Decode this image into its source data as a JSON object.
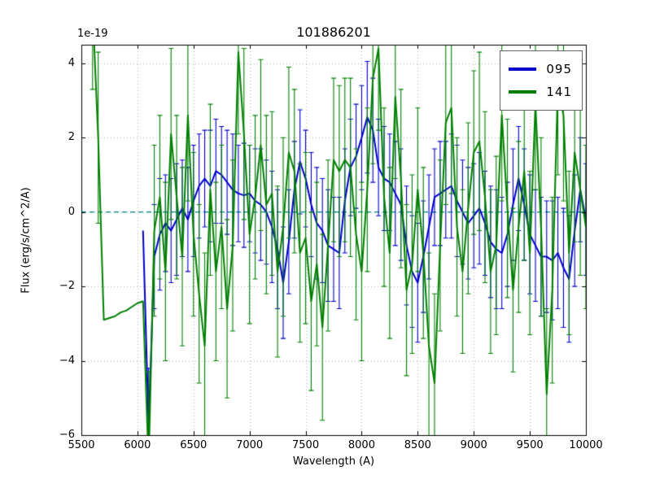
{
  "figure": {
    "title": "101886201",
    "offset_text": "1e-19",
    "xlabel": "Wavelength (A)",
    "ylabel": "Flux (erg/s/cm^2/A)",
    "colors": {
      "background": "#ffffff",
      "frame": "#000000",
      "grid": "#b0b0b0",
      "zero_line": "#008b8b",
      "series_095": "#0000cd",
      "series_141": "#008000"
    }
  },
  "chart_data": {
    "type": "line",
    "title": "101886201",
    "xlabel": "Wavelength (A)",
    "ylabel": "Flux (erg/s/cm^2/A)",
    "y_scale_factor": "1e-19",
    "xlim": [
      5500,
      10000
    ],
    "ylim": [
      -6,
      4.5
    ],
    "xticks": [
      5500,
      6000,
      6500,
      7000,
      7500,
      8000,
      8500,
      9000,
      9500,
      10000
    ],
    "xtick_labels": [
      "5500",
      "6000",
      "6500",
      "7000",
      "7500",
      "8000",
      "8500",
      "9000",
      "9500",
      "10000"
    ],
    "yticks": [
      -6,
      -4,
      -2,
      0,
      2,
      4
    ],
    "ytick_labels": [
      "−6",
      "−4",
      "−2",
      "0",
      "2",
      "4"
    ],
    "grid": true,
    "grid_style": "dotted",
    "legend_position": "upper right",
    "zero_line": {
      "y": 0,
      "style": "dashed",
      "color": "#008b8b"
    },
    "series": [
      {
        "name": "095",
        "color": "#0000cd",
        "x": [
          6050,
          6100,
          6150,
          6200,
          6250,
          6300,
          6350,
          6400,
          6450,
          6500,
          6550,
          6600,
          6650,
          6700,
          6750,
          6800,
          6850,
          6900,
          6950,
          7000,
          7050,
          7100,
          7150,
          7200,
          7250,
          7300,
          7350,
          7400,
          7450,
          7500,
          7550,
          7600,
          7650,
          7700,
          7750,
          7800,
          7850,
          7900,
          7950,
          8000,
          8050,
          8100,
          8150,
          8200,
          8250,
          8300,
          8350,
          8400,
          8450,
          8500,
          8550,
          8600,
          8650,
          8700,
          8750,
          8800,
          8850,
          8900,
          8950,
          9000,
          9050,
          9100,
          9150,
          9200,
          9250,
          9300,
          9350,
          9400,
          9450,
          9500,
          9550,
          9600,
          9650,
          9700,
          9750,
          9800,
          9850,
          9900,
          9950,
          10000
        ],
        "y": [
          -0.5,
          -5.8,
          -1.2,
          -0.6,
          -0.3,
          -0.5,
          -0.2,
          0.1,
          -0.2,
          0.3,
          0.7,
          0.9,
          0.7,
          1.1,
          1.0,
          0.8,
          0.6,
          0.5,
          0.45,
          0.5,
          0.3,
          0.2,
          0.0,
          -0.4,
          -1.0,
          -1.9,
          -0.8,
          0.6,
          1.35,
          0.9,
          0.2,
          -0.3,
          -0.5,
          -0.9,
          -1.0,
          -1.1,
          0.3,
          1.2,
          1.5,
          2.0,
          2.55,
          2.2,
          1.2,
          0.9,
          0.8,
          0.5,
          0.2,
          -0.9,
          -1.6,
          -1.9,
          -1.2,
          -0.4,
          0.4,
          0.5,
          0.6,
          0.7,
          0.3,
          0.0,
          -0.3,
          -0.1,
          0.1,
          -0.3,
          -0.8,
          -1.0,
          -1.1,
          -0.6,
          0.2,
          0.9,
          0.2,
          -0.6,
          -0.9,
          -1.2,
          -1.2,
          -1.3,
          -1.1,
          -1.5,
          -1.8,
          -0.5,
          0.6,
          -0.2
        ],
        "yerr": [
          null,
          1.6,
          1.4,
          1.5,
          1.3,
          1.4,
          1.5,
          1.3,
          1.4,
          1.5,
          1.4,
          1.3,
          1.5,
          1.4,
          1.3,
          1.4,
          1.5,
          1.3,
          1.4,
          1.3,
          1.4,
          1.5,
          1.4,
          1.5,
          1.6,
          1.5,
          1.4,
          1.3,
          1.4,
          1.3,
          1.4,
          1.5,
          1.4,
          1.5,
          1.4,
          1.5,
          1.4,
          1.3,
          1.4,
          1.4,
          1.5,
          1.4,
          1.3,
          1.4,
          1.3,
          1.4,
          1.5,
          1.6,
          1.5,
          1.6,
          1.5,
          1.4,
          1.3,
          1.4,
          1.3,
          1.4,
          1.5,
          1.4,
          1.5,
          1.4,
          1.5,
          1.4,
          1.5,
          1.6,
          1.5,
          1.4,
          1.5,
          1.4,
          1.5,
          1.6,
          1.5,
          1.6,
          1.5,
          1.6,
          1.5,
          1.6,
          1.7,
          1.5,
          1.4,
          1.5
        ]
      },
      {
        "name": "141",
        "color": "#008000",
        "x": [
          5600,
          5650,
          5700,
          5750,
          5800,
          5850,
          5900,
          5950,
          6000,
          6050,
          6100,
          6150,
          6200,
          6250,
          6300,
          6350,
          6400,
          6450,
          6500,
          6550,
          6600,
          6650,
          6700,
          6750,
          6800,
          6850,
          6900,
          6950,
          7000,
          7050,
          7100,
          7150,
          7200,
          7250,
          7300,
          7350,
          7400,
          7450,
          7500,
          7550,
          7600,
          7650,
          7700,
          7750,
          7800,
          7850,
          7900,
          7950,
          8000,
          8050,
          8100,
          8150,
          8200,
          8250,
          8300,
          8350,
          8400,
          8450,
          8500,
          8550,
          8600,
          8650,
          8700,
          8750,
          8800,
          8850,
          8900,
          8950,
          9000,
          9050,
          9100,
          9150,
          9200,
          9250,
          9300,
          9350,
          9400,
          9450,
          9500,
          9550,
          9600,
          9650,
          9700,
          9750,
          9800,
          9850,
          9900,
          9950,
          10000
        ],
        "y": [
          5.5,
          2.0,
          -2.9,
          -2.85,
          -2.8,
          -2.7,
          -2.65,
          -2.55,
          -2.45,
          -2.4,
          -6.8,
          -0.5,
          0.4,
          -1.6,
          2.1,
          0.4,
          -1.2,
          2.6,
          -0.6,
          -2.2,
          -3.6,
          0.6,
          -1.6,
          -0.4,
          -2.6,
          -0.9,
          4.3,
          2.1,
          -0.6,
          0.4,
          1.8,
          0.2,
          0.5,
          -1.6,
          -0.4,
          1.6,
          1.1,
          -1.1,
          -0.7,
          -2.4,
          -1.4,
          -3.1,
          -0.9,
          1.4,
          1.1,
          1.4,
          1.2,
          -0.6,
          -1.6,
          0.6,
          3.6,
          4.4,
          0.4,
          -1.1,
          3.1,
          0.9,
          -2.1,
          -1.4,
          0.6,
          -1.1,
          -3.6,
          -4.6,
          -0.9,
          2.4,
          2.8,
          -0.4,
          -1.6,
          0.1,
          1.6,
          1.9,
          0.4,
          -1.6,
          -0.9,
          2.6,
          0.1,
          -2.1,
          -0.4,
          1.1,
          -1.1,
          2.9,
          -0.4,
          -4.9,
          -2.1,
          3.4,
          2.6,
          -1.1,
          1.6,
          0.6,
          -0.4
        ],
        "yerr": [
          2.2,
          2.3,
          null,
          null,
          null,
          null,
          null,
          null,
          null,
          null,
          2.5,
          2.3,
          2.2,
          2.4,
          2.3,
          2.2,
          2.4,
          2.3,
          2.2,
          2.4,
          2.5,
          2.3,
          2.4,
          2.2,
          2.4,
          2.3,
          2.2,
          2.3,
          2.4,
          2.2,
          2.3,
          2.4,
          2.2,
          2.3,
          2.4,
          2.3,
          2.2,
          2.4,
          2.3,
          2.4,
          2.2,
          2.5,
          2.3,
          2.2,
          2.3,
          2.2,
          2.4,
          2.3,
          2.4,
          2.2,
          2.3,
          2.2,
          2.4,
          2.3,
          2.2,
          2.4,
          2.3,
          2.4,
          2.2,
          2.3,
          2.5,
          2.4,
          2.3,
          2.2,
          2.3,
          2.4,
          2.2,
          2.3,
          2.2,
          2.4,
          2.3,
          2.2,
          2.4,
          2.3,
          2.4,
          2.2,
          2.3,
          2.4,
          2.2,
          2.3,
          2.4,
          2.3,
          2.5,
          2.4,
          2.3,
          2.2,
          2.4,
          2.3,
          2.2
        ]
      }
    ]
  }
}
